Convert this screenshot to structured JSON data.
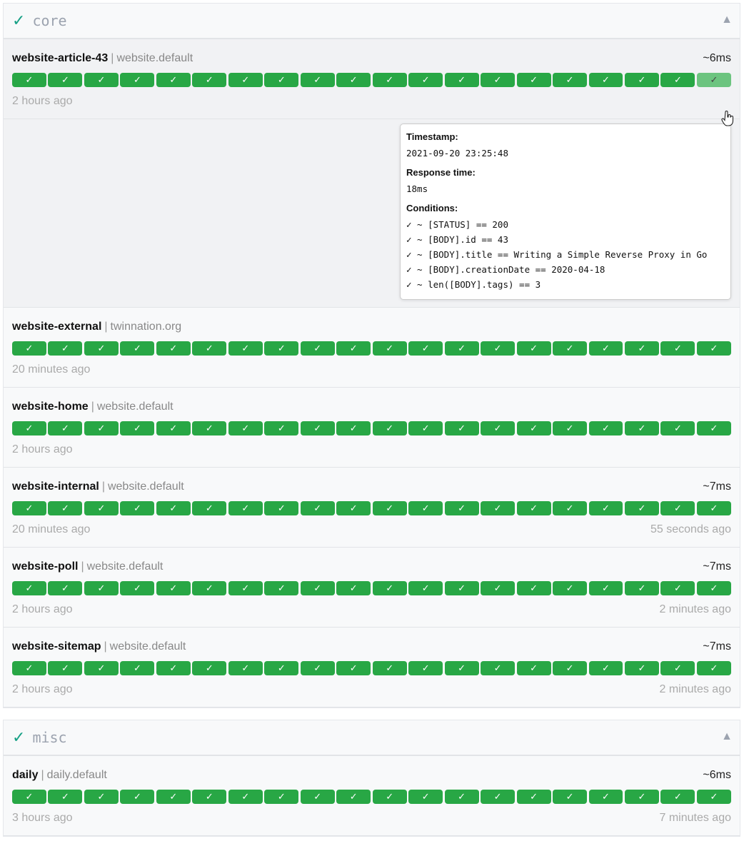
{
  "groups": [
    {
      "name": "core",
      "status_icon": "✓",
      "collapse_icon": "▲",
      "endpoints": [
        {
          "name": "website-article-43",
          "group": "website.default",
          "response": "~6ms",
          "oldest": "2 hours ago",
          "newest": ""
        },
        {
          "name": "website-external",
          "group": "twinnation.org",
          "response": "",
          "oldest": "20 minutes ago",
          "newest": ""
        },
        {
          "name": "website-home",
          "group": "website.default",
          "response": "",
          "oldest": "2 hours ago",
          "newest": ""
        },
        {
          "name": "website-internal",
          "group": "website.default",
          "response": "~7ms",
          "oldest": "20 minutes ago",
          "newest": "55 seconds ago"
        },
        {
          "name": "website-poll",
          "group": "website.default",
          "response": "~7ms",
          "oldest": "2 hours ago",
          "newest": "2 minutes ago"
        },
        {
          "name": "website-sitemap",
          "group": "website.default",
          "response": "~7ms",
          "oldest": "2 hours ago",
          "newest": "2 minutes ago"
        }
      ]
    },
    {
      "name": "misc",
      "status_icon": "✓",
      "collapse_icon": "▲",
      "endpoints": [
        {
          "name": "daily",
          "group": "daily.default",
          "response": "~6ms",
          "oldest": "3 hours ago",
          "newest": "7 minutes ago"
        }
      ]
    }
  ],
  "separator": "|",
  "badge_icon": "✓",
  "success_color": "#28a745",
  "tooltip": {
    "timestamp_label": "Timestamp:",
    "timestamp": "2021-09-20 23:25:48",
    "response_label": "Response time:",
    "response": "18ms",
    "conditions_label": "Conditions:",
    "conditions": [
      "✓ ~ [STATUS] == 200",
      "✓ ~ [BODY].id == 43",
      "✓ ~ [BODY].title == Writing a Simple Reverse Proxy in Go",
      "✓ ~ [BODY].creationDate == 2020-04-18",
      "✓ ~ len([BODY].tags) == 3"
    ]
  }
}
